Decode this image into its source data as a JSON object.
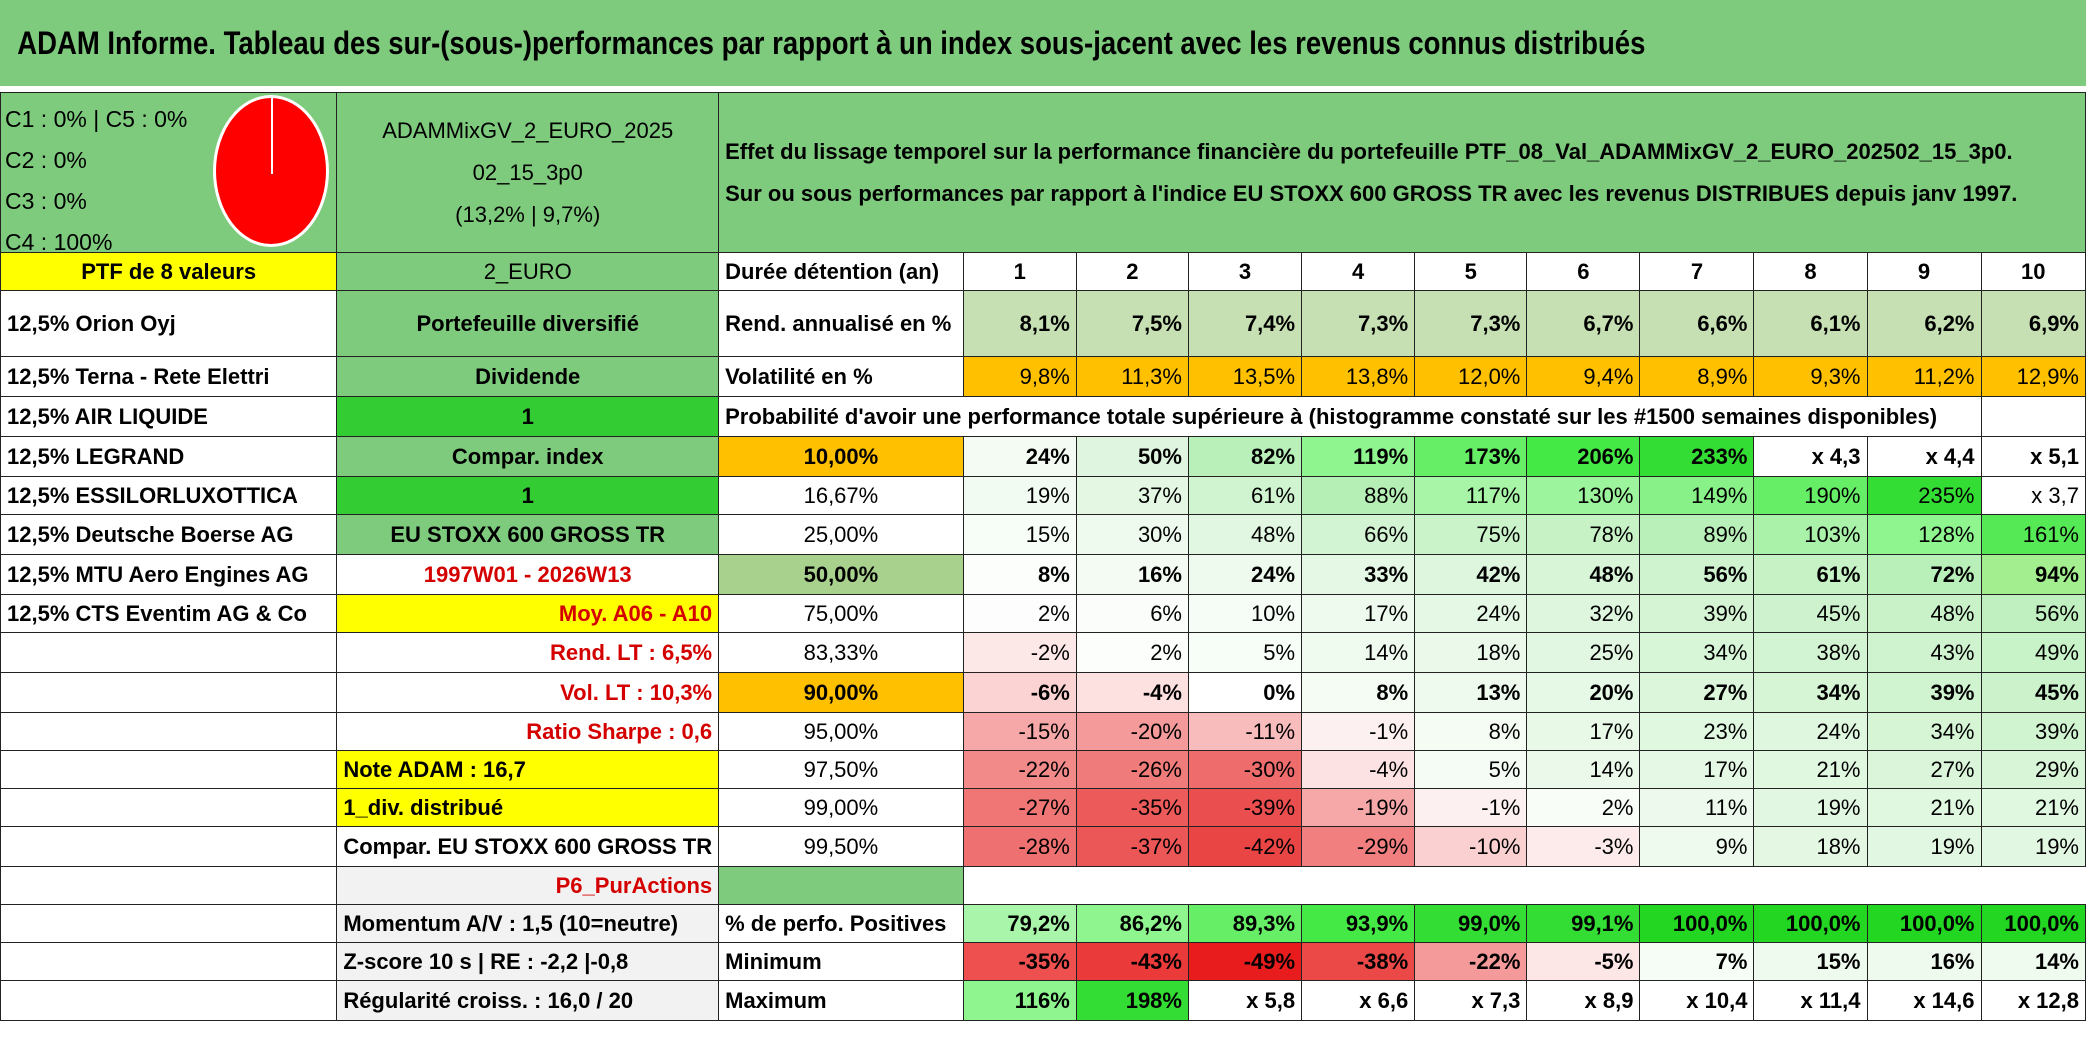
{
  "title": "ADAM Informe. Tableau des sur-(sous-)performances par rapport à un index sous-jacent avec les revenus connus distribués",
  "header": {
    "cats": [
      "C1 : 0% | C5 : 0%",
      "C2 : 0%",
      "C3 : 0%",
      "C4 : 100%"
    ],
    "portfolio_name_1": "ADAMMixGV_2_EURO_2025",
    "portfolio_name_2": "02_15_3p0",
    "portfolio_perf": "(13,2% | 9,7%)",
    "description_1": "Effet du lissage temporel sur la performance financière du portefeuille PTF_08_Val_ADAMMixGV_2_EURO_202502_15_3p0.",
    "description_2": "Sur ou sous performances par rapport à l'indice EU STOXX 600 GROSS TR avec les revenus DISTRIBUES depuis janv 1997."
  },
  "colors": {
    "title_green": "#7ecb7e",
    "red": "#ff0000",
    "yellow": "#ffff00",
    "orange": "#ffc000"
  },
  "left": {
    "ptf_label": "PTF de 8 valeurs",
    "holdings": [
      "12,5% Orion Oyj",
      "12,5% Terna - Rete Elettri",
      "12,5% AIR LIQUIDE",
      "12,5% LEGRAND",
      "12,5% ESSILORLUXOTTICA",
      "12,5% Deutsche Boerse AG",
      "12,5% MTU Aero Engines AG",
      "12,5% CTS Eventim AG & Co"
    ]
  },
  "mid": {
    "currency": "2_EURO",
    "type": "Portefeuille diversifié",
    "dividend_label": "Dividende",
    "dividend_value": "1",
    "compar_label": "Compar. index",
    "compar_value": "1",
    "index_name": "EU STOXX 600 GROSS TR",
    "period": "1997W01 - 2026W13",
    "moy": "Moy. A06 - A10",
    "rend_lt": "Rend. LT : 6,5%",
    "vol_lt": "Vol. LT : 10,3%",
    "sharpe": "Ratio Sharpe : 0,6",
    "note": "Note ADAM : 16,7",
    "div": "1_div. distribué",
    "compar_full": "Compar. EU STOXX 600 GROSS TR",
    "p6": "P6_PurActions",
    "momentum": "Momentum A/V : 1,5 (10=neutre)",
    "zscore": "Z-score 10 s | RE : -2,2 |-0,8",
    "regularite": "Régularité croiss. : 16,0 / 20"
  },
  "table": {
    "duration_label": "Durée détention (an)",
    "years": [
      "1",
      "2",
      "3",
      "4",
      "5",
      "6",
      "7",
      "8",
      "9",
      "10"
    ],
    "rend_label": "Rend. annualisé en %",
    "rend": [
      "8,1%",
      "7,5%",
      "7,4%",
      "7,3%",
      "7,3%",
      "6,7%",
      "6,6%",
      "6,1%",
      "6,2%",
      "6,9%"
    ],
    "vol_label": "Volatilité en %",
    "vol": [
      "9,8%",
      "11,3%",
      "13,5%",
      "13,8%",
      "12,0%",
      "9,4%",
      "8,9%",
      "9,3%",
      "11,2%",
      "12,9%"
    ],
    "proba_label": "Probabilité d'avoir une performance totale supérieure à (histogramme constaté sur les #1500 semaines disponibles)",
    "rows": [
      {
        "p": "10,00%",
        "v": [
          "24%",
          "50%",
          "82%",
          "119%",
          "173%",
          "206%",
          "233%",
          "x 4,3",
          "x 4,4",
          "x 5,1"
        ]
      },
      {
        "p": "16,67%",
        "v": [
          "19%",
          "37%",
          "61%",
          "88%",
          "117%",
          "130%",
          "149%",
          "190%",
          "235%",
          "x 3,7"
        ]
      },
      {
        "p": "25,00%",
        "v": [
          "15%",
          "30%",
          "48%",
          "66%",
          "75%",
          "78%",
          "89%",
          "103%",
          "128%",
          "161%"
        ]
      },
      {
        "p": "50,00%",
        "v": [
          "8%",
          "16%",
          "24%",
          "33%",
          "42%",
          "48%",
          "56%",
          "61%",
          "72%",
          "94%"
        ]
      },
      {
        "p": "75,00%",
        "v": [
          "2%",
          "6%",
          "10%",
          "17%",
          "24%",
          "32%",
          "39%",
          "45%",
          "48%",
          "56%"
        ]
      },
      {
        "p": "83,33%",
        "v": [
          "-2%",
          "2%",
          "5%",
          "14%",
          "18%",
          "25%",
          "34%",
          "38%",
          "43%",
          "49%"
        ]
      },
      {
        "p": "90,00%",
        "v": [
          "-6%",
          "-4%",
          "0%",
          "8%",
          "13%",
          "20%",
          "27%",
          "34%",
          "39%",
          "45%"
        ]
      },
      {
        "p": "95,00%",
        "v": [
          "-15%",
          "-20%",
          "-11%",
          "-1%",
          "8%",
          "17%",
          "23%",
          "24%",
          "34%",
          "39%"
        ]
      },
      {
        "p": "97,50%",
        "v": [
          "-22%",
          "-26%",
          "-30%",
          "-4%",
          "5%",
          "14%",
          "17%",
          "21%",
          "27%",
          "29%"
        ]
      },
      {
        "p": "99,00%",
        "v": [
          "-27%",
          "-35%",
          "-39%",
          "-19%",
          "-1%",
          "2%",
          "11%",
          "19%",
          "21%",
          "21%"
        ]
      },
      {
        "p": "99,50%",
        "v": [
          "-28%",
          "-37%",
          "-42%",
          "-29%",
          "-10%",
          "-3%",
          "9%",
          "18%",
          "19%",
          "19%"
        ]
      }
    ],
    "pos_label": "% de perfo. Positives",
    "pos": [
      "79,2%",
      "86,2%",
      "89,3%",
      "93,9%",
      "99,0%",
      "99,1%",
      "100,0%",
      "100,0%",
      "100,0%",
      "100,0%"
    ],
    "min_label": "Minimum",
    "min": [
      "-35%",
      "-43%",
      "-49%",
      "-38%",
      "-22%",
      "-5%",
      "7%",
      "15%",
      "16%",
      "14%"
    ],
    "max_label": "Maximum",
    "max": [
      "116%",
      "198%",
      "x 5,8",
      "x 6,6",
      "x 7,3",
      "x 8,9",
      "x 10,4",
      "x 11,4",
      "x 14,6",
      "x 12,8"
    ]
  }
}
